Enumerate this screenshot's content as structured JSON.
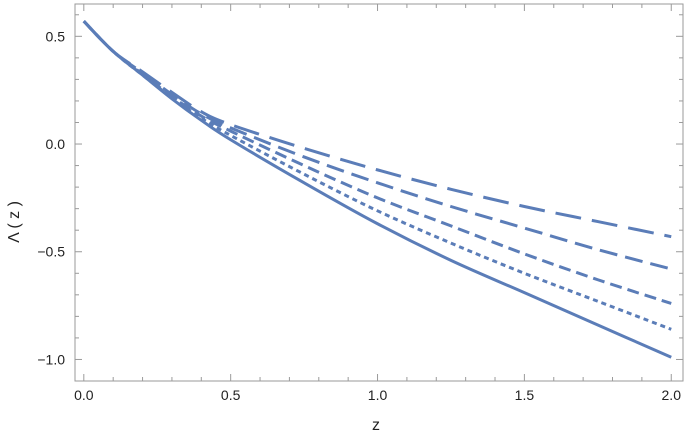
{
  "chart_data": {
    "type": "line",
    "title": "",
    "xlabel": "z",
    "ylabel": "Λ ( z )",
    "xlim": [
      -0.03,
      2.04
    ],
    "ylim": [
      -1.1,
      0.65
    ],
    "xticks": [
      {
        "value": 0.0,
        "label": "0.0"
      },
      {
        "value": 0.5,
        "label": "0.5"
      },
      {
        "value": 1.0,
        "label": "1.0"
      },
      {
        "value": 1.5,
        "label": "1.5"
      },
      {
        "value": 2.0,
        "label": "2.0"
      }
    ],
    "yticks": [
      {
        "value": 0.5,
        "label": "0.5"
      },
      {
        "value": 0.0,
        "label": "0.0"
      },
      {
        "value": -0.5,
        "label": "−0.5"
      },
      {
        "value": -1.0,
        "label": "−1.0"
      }
    ],
    "xminor_step": 0.1,
    "yminor_step": 0.1,
    "grid": false,
    "legend": "none",
    "color": "#5B7DB8",
    "series": [
      {
        "style": "solid",
        "x": [
          0.0,
          0.1,
          0.2,
          0.3,
          0.4,
          0.5,
          0.75,
          1.0,
          1.25,
          1.5,
          1.75,
          2.0
        ],
        "y": [
          0.57,
          0.43,
          0.32,
          0.21,
          0.11,
          0.02,
          -0.18,
          -0.37,
          -0.54,
          -0.69,
          -0.84,
          -0.99
        ]
      },
      {
        "style": "dash-short",
        "x": [
          0.0,
          0.1,
          0.2,
          0.3,
          0.4,
          0.5,
          0.75,
          1.0,
          1.25,
          1.5,
          1.75,
          2.0
        ],
        "y": [
          0.57,
          0.43,
          0.32,
          0.215,
          0.12,
          0.04,
          -0.14,
          -0.31,
          -0.46,
          -0.6,
          -0.73,
          -0.86
        ]
      },
      {
        "style": "dash-medium",
        "x": [
          0.0,
          0.1,
          0.2,
          0.3,
          0.4,
          0.5,
          0.75,
          1.0,
          1.25,
          1.5,
          1.75,
          2.0
        ],
        "y": [
          0.57,
          0.43,
          0.325,
          0.22,
          0.13,
          0.06,
          -0.1,
          -0.25,
          -0.38,
          -0.51,
          -0.63,
          -0.74
        ]
      },
      {
        "style": "dash-long",
        "x": [
          0.0,
          0.1,
          0.2,
          0.3,
          0.4,
          0.5,
          0.75,
          1.0,
          1.25,
          1.5,
          1.75,
          2.0
        ],
        "y": [
          0.57,
          0.43,
          0.33,
          0.23,
          0.14,
          0.075,
          -0.06,
          -0.18,
          -0.29,
          -0.39,
          -0.49,
          -0.58
        ]
      },
      {
        "style": "dash-xlong",
        "x": [
          0.0,
          0.1,
          0.2,
          0.3,
          0.4,
          0.5,
          0.75,
          1.0,
          1.25,
          1.5,
          1.75,
          2.0
        ],
        "y": [
          0.57,
          0.43,
          0.335,
          0.24,
          0.15,
          0.09,
          -0.02,
          -0.12,
          -0.21,
          -0.29,
          -0.36,
          -0.43
        ]
      }
    ]
  }
}
